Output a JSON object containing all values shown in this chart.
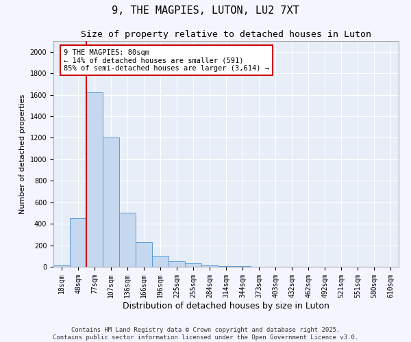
{
  "title": "9, THE MAGPIES, LUTON, LU2 7XT",
  "subtitle": "Size of property relative to detached houses in Luton",
  "xlabel": "Distribution of detached houses by size in Luton",
  "ylabel": "Number of detached properties",
  "bins": [
    "18sqm",
    "48sqm",
    "77sqm",
    "107sqm",
    "136sqm",
    "166sqm",
    "196sqm",
    "225sqm",
    "255sqm",
    "284sqm",
    "314sqm",
    "344sqm",
    "373sqm",
    "403sqm",
    "432sqm",
    "462sqm",
    "492sqm",
    "521sqm",
    "551sqm",
    "580sqm",
    "610sqm"
  ],
  "values": [
    12,
    450,
    1620,
    1200,
    500,
    230,
    100,
    50,
    30,
    15,
    8,
    4,
    2,
    1,
    1,
    0,
    0,
    0,
    0,
    0,
    0
  ],
  "bar_color": "#c5d8f0",
  "bar_edge_color": "#5b9bd5",
  "vline_x_index": 2,
  "vline_color": "#cc0000",
  "annotation_line1": "9 THE MAGPIES: 80sqm",
  "annotation_line2": "← 14% of detached houses are smaller (591)",
  "annotation_line3": "85% of semi-detached houses are larger (3,614) →",
  "ylim": [
    0,
    2100
  ],
  "yticks": [
    0,
    200,
    400,
    600,
    800,
    1000,
    1200,
    1400,
    1600,
    1800,
    2000
  ],
  "bg_color": "#e8eef8",
  "fig_bg_color": "#f5f5ff",
  "footer_line1": "Contains HM Land Registry data © Crown copyright and database right 2025.",
  "footer_line2": "Contains public sector information licensed under the Open Government Licence v3.0.",
  "title_fontsize": 11,
  "subtitle_fontsize": 9.5,
  "xlabel_fontsize": 9,
  "ylabel_fontsize": 8,
  "tick_fontsize": 7,
  "annotation_fontsize": 7.5,
  "footer_fontsize": 6.5
}
